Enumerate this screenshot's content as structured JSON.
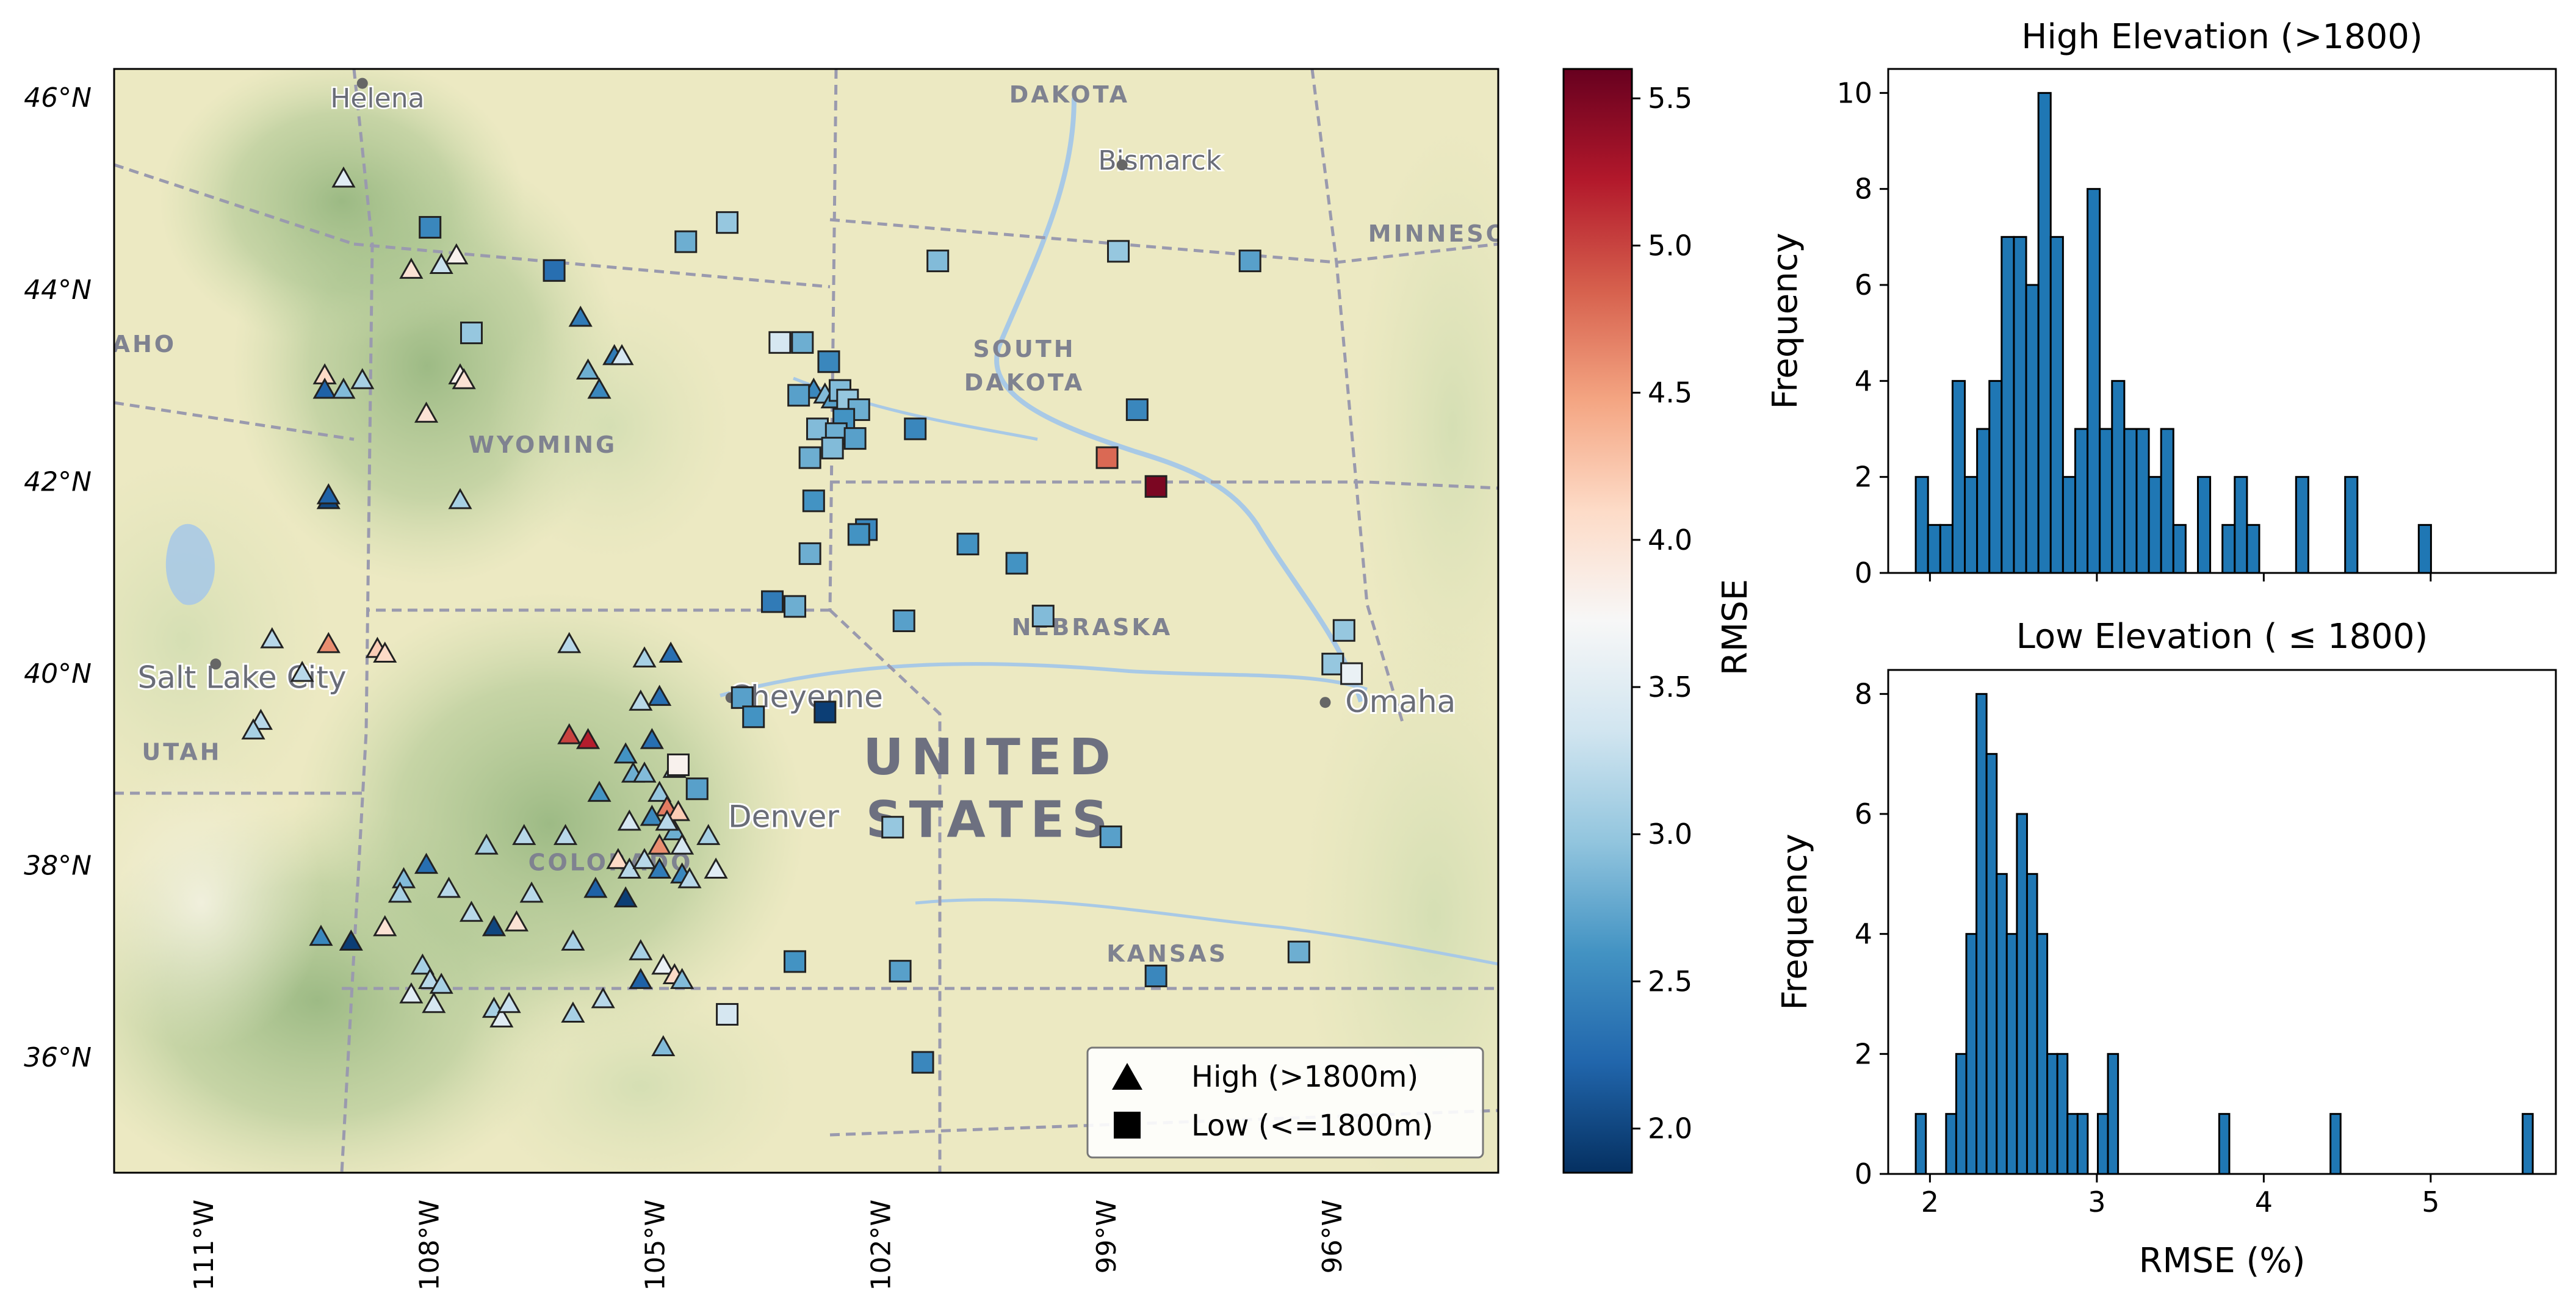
{
  "colors": {
    "bar_fill": "#1f77b4",
    "bar_edge": "#000000",
    "map_land": "#ece9c2",
    "map_green": "#bfd3a4",
    "map_dark_green": "#93b57e",
    "water": "#a8c9e6",
    "border": "#9a9aae"
  },
  "colormap": {
    "name": "RdBu_r",
    "stops": [
      "#053061",
      "#2166ac",
      "#4393c3",
      "#92c5de",
      "#d1e5f0",
      "#f7f7f7",
      "#fddbc7",
      "#f4a582",
      "#d6604d",
      "#b2182b",
      "#67001f"
    ]
  },
  "map": {
    "extent": {
      "lon": [
        -112.2,
        -93.8
      ],
      "lat": [
        34.8,
        46.3
      ]
    },
    "lat_ticks": [
      {
        "value": 46,
        "label": "46°N"
      },
      {
        "value": 44,
        "label": "44°N"
      },
      {
        "value": 42,
        "label": "42°N"
      },
      {
        "value": 40,
        "label": "40°N"
      },
      {
        "value": 38,
        "label": "38°N"
      },
      {
        "value": 36,
        "label": "36°N"
      }
    ],
    "lon_ticks": [
      {
        "value": -111,
        "label": "111°W"
      },
      {
        "value": -108,
        "label": "108°W"
      },
      {
        "value": -105,
        "label": "105°W"
      },
      {
        "value": -102,
        "label": "102°W"
      },
      {
        "value": -99,
        "label": "99°W"
      },
      {
        "value": -96,
        "label": "96°W"
      }
    ],
    "place_labels": [
      {
        "text": "DAKOTA",
        "lon": -99.5,
        "lat": 45.95,
        "kind": "state"
      },
      {
        "text": "Bismarck",
        "lon": -98.3,
        "lat": 45.25,
        "kind": "city"
      },
      {
        "text": "Helena",
        "lon": -108.7,
        "lat": 45.9,
        "kind": "city"
      },
      {
        "text": "MINNESO",
        "lon": -94.6,
        "lat": 44.5,
        "kind": "state"
      },
      {
        "text": "SOUTH",
        "lon": -100.1,
        "lat": 43.3,
        "kind": "state"
      },
      {
        "text": "DAKOTA",
        "lon": -100.1,
        "lat": 42.95,
        "kind": "state"
      },
      {
        "text": "AHO",
        "lon": -111.8,
        "lat": 43.35,
        "kind": "state"
      },
      {
        "text": "WYOMING",
        "lon": -106.5,
        "lat": 42.3,
        "kind": "state"
      },
      {
        "text": "Salt Lake City",
        "lon": -110.5,
        "lat": 39.85,
        "kind": "bigcity"
      },
      {
        "text": "UTAH",
        "lon": -111.3,
        "lat": 39.1,
        "kind": "state"
      },
      {
        "text": "Cheyenne",
        "lon": -103.0,
        "lat": 39.65,
        "kind": "bigcity"
      },
      {
        "text": "NEBRASKA",
        "lon": -99.2,
        "lat": 40.4,
        "kind": "state"
      },
      {
        "text": "Omaha",
        "lon": -95.1,
        "lat": 39.6,
        "kind": "bigcity"
      },
      {
        "text": "UNITED",
        "lon": -100.55,
        "lat": 38.95,
        "kind": "country"
      },
      {
        "text": "STATES",
        "lon": -100.55,
        "lat": 38.3,
        "kind": "country"
      },
      {
        "text": "Denver",
        "lon": -103.3,
        "lat": 38.4,
        "kind": "bigcity"
      },
      {
        "text": "COLORADO",
        "lon": -105.6,
        "lat": 37.95,
        "kind": "state"
      },
      {
        "text": "KANSAS",
        "lon": -98.2,
        "lat": 37.0,
        "kind": "state"
      }
    ],
    "legend": [
      {
        "marker": "triangle",
        "label": "High (>1800m)"
      },
      {
        "marker": "square",
        "label": "Low (<=1800m)"
      }
    ]
  },
  "colorbar": {
    "label": "RMSE",
    "range": [
      1.85,
      5.6
    ],
    "ticks": [
      {
        "value": 2.0,
        "label": "2.0"
      },
      {
        "value": 2.5,
        "label": "2.5"
      },
      {
        "value": 3.0,
        "label": "3.0"
      },
      {
        "value": 3.5,
        "label": "3.5"
      },
      {
        "value": 4.0,
        "label": "4.0"
      },
      {
        "value": 4.5,
        "label": "4.5"
      },
      {
        "value": 5.0,
        "label": "5.0"
      },
      {
        "value": 5.5,
        "label": "5.5"
      }
    ]
  },
  "chart_data": [
    {
      "type": "scatter",
      "title": "",
      "xlabel": "",
      "ylabel": "",
      "series": [
        {
          "name": "High (>1800m)",
          "marker": "triangle",
          "points": [
            [
              -109.15,
              45.15,
              3.5
            ],
            [
              -107.65,
              44.35,
              3.8
            ],
            [
              -107.85,
              44.25,
              3.3
            ],
            [
              -108.25,
              44.2,
              4.0
            ],
            [
              -106.0,
              43.7,
              2.4
            ],
            [
              -105.55,
              43.3,
              2.4
            ],
            [
              -105.45,
              43.3,
              3.4
            ],
            [
              -105.9,
              43.15,
              2.8
            ],
            [
              -105.75,
              42.95,
              2.5
            ],
            [
              -109.4,
              43.1,
              4.1
            ],
            [
              -109.4,
              42.95,
              2.2
            ],
            [
              -109.15,
              42.95,
              2.9
            ],
            [
              -108.9,
              43.05,
              3.1
            ],
            [
              -107.6,
              43.1,
              3.8
            ],
            [
              -107.55,
              43.05,
              4.0
            ],
            [
              -108.05,
              42.7,
              4.0
            ],
            [
              -109.35,
              41.8,
              2.0
            ],
            [
              -109.35,
              41.85,
              2.2
            ],
            [
              -107.6,
              41.8,
              3.1
            ],
            [
              -110.1,
              40.35,
              3.2
            ],
            [
              -109.35,
              40.3,
              4.6
            ],
            [
              -108.7,
              40.25,
              4.2
            ],
            [
              -108.6,
              40.2,
              4.1
            ],
            [
              -109.7,
              40.0,
              3.2
            ],
            [
              -110.25,
              39.5,
              3.2
            ],
            [
              -110.35,
              39.4,
              3.1
            ],
            [
              -106.15,
              40.3,
              3.2
            ],
            [
              -105.15,
              40.15,
              3.1
            ],
            [
              -104.8,
              40.2,
              2.3
            ],
            [
              -104.95,
              39.75,
              2.3
            ],
            [
              -105.2,
              39.7,
              3.2
            ],
            [
              -105.05,
              39.3,
              2.3
            ],
            [
              -106.15,
              39.35,
              5.0
            ],
            [
              -105.9,
              39.3,
              5.2
            ],
            [
              -105.4,
              39.15,
              2.6
            ],
            [
              -105.3,
              38.95,
              2.8
            ],
            [
              -105.15,
              38.95,
              2.9
            ],
            [
              -104.75,
              39.0,
              3.1
            ],
            [
              -105.75,
              38.75,
              2.6
            ],
            [
              -104.95,
              38.75,
              3.0
            ],
            [
              -104.85,
              38.6,
              4.7
            ],
            [
              -104.7,
              38.55,
              4.2
            ],
            [
              -104.75,
              38.35,
              2.8
            ],
            [
              -104.95,
              38.2,
              4.6
            ],
            [
              -104.65,
              38.2,
              3.4
            ],
            [
              -105.35,
              38.45,
              3.4
            ],
            [
              -105.05,
              38.5,
              2.5
            ],
            [
              -104.85,
              38.45,
              3.2
            ],
            [
              -104.3,
              38.3,
              3.1
            ],
            [
              -106.2,
              38.3,
              3.2
            ],
            [
              -105.5,
              38.05,
              4.1
            ],
            [
              -105.35,
              37.95,
              3.2
            ],
            [
              -105.15,
              38.05,
              3.2
            ],
            [
              -104.95,
              37.95,
              2.4
            ],
            [
              -104.65,
              37.9,
              2.5
            ],
            [
              -104.55,
              37.85,
              3.2
            ],
            [
              -104.2,
              37.95,
              3.5
            ],
            [
              -106.75,
              38.3,
              3.2
            ],
            [
              -107.25,
              38.2,
              3.1
            ],
            [
              -108.05,
              38.0,
              2.3
            ],
            [
              -108.35,
              37.85,
              2.9
            ],
            [
              -108.4,
              37.7,
              3.1
            ],
            [
              -107.75,
              37.75,
              3.2
            ],
            [
              -106.65,
              37.7,
              3.2
            ],
            [
              -105.8,
              37.75,
              2.2
            ],
            [
              -105.4,
              37.65,
              1.95
            ],
            [
              -107.45,
              37.5,
              3.2
            ],
            [
              -107.15,
              37.35,
              2.0
            ],
            [
              -106.85,
              37.4,
              4.0
            ],
            [
              -106.1,
              37.2,
              3.1
            ],
            [
              -105.2,
              37.1,
              3.1
            ],
            [
              -108.6,
              37.35,
              4.0
            ],
            [
              -109.05,
              37.2,
              1.95
            ],
            [
              -109.45,
              37.25,
              2.5
            ],
            [
              -108.1,
              36.95,
              3.1
            ],
            [
              -108.0,
              36.8,
              3.2
            ],
            [
              -108.25,
              36.65,
              3.5
            ],
            [
              -107.95,
              36.55,
              3.4
            ],
            [
              -107.85,
              36.75,
              3.1
            ],
            [
              -107.15,
              36.5,
              3.1
            ],
            [
              -107.05,
              36.4,
              3.5
            ],
            [
              -106.95,
              36.55,
              3.3
            ],
            [
              -106.1,
              36.45,
              3.1
            ],
            [
              -105.7,
              36.6,
              3.2
            ],
            [
              -104.9,
              36.95,
              3.6
            ],
            [
              -104.75,
              36.85,
              4.1
            ],
            [
              -104.65,
              36.8,
              2.9
            ],
            [
              -105.2,
              36.8,
              2.2
            ],
            [
              -104.9,
              36.1,
              2.9
            ],
            [
              -102.9,
              42.95,
              2.5
            ],
            [
              -102.75,
              42.9,
              2.9
            ],
            [
              -102.65,
              42.85,
              2.7
            ]
          ]
        },
        {
          "name": "Low (<=1800m)",
          "marker": "square",
          "points": [
            [
              -108.0,
              44.65,
              2.5
            ],
            [
              -107.45,
              43.55,
              3.0
            ],
            [
              -106.35,
              44.2,
              2.3
            ],
            [
              -104.05,
              44.7,
              3.0
            ],
            [
              -104.6,
              44.5,
              2.8
            ],
            [
              -101.25,
              44.3,
              2.9
            ],
            [
              -98.85,
              44.4,
              3.0
            ],
            [
              -97.1,
              44.3,
              2.7
            ],
            [
              -103.35,
              43.45,
              3.4
            ],
            [
              -103.05,
              43.45,
              2.8
            ],
            [
              -102.7,
              43.25,
              2.5
            ],
            [
              -103.1,
              42.9,
              2.7
            ],
            [
              -102.55,
              42.95,
              2.9
            ],
            [
              -102.45,
              42.85,
              3.0
            ],
            [
              -102.3,
              42.75,
              2.8
            ],
            [
              -102.5,
              42.65,
              2.6
            ],
            [
              -102.85,
              42.55,
              2.9
            ],
            [
              -102.6,
              42.5,
              2.8
            ],
            [
              -102.35,
              42.45,
              2.7
            ],
            [
              -102.65,
              42.35,
              2.9
            ],
            [
              -102.95,
              42.25,
              2.8
            ],
            [
              -101.55,
              42.55,
              2.5
            ],
            [
              -98.6,
              42.75,
              2.5
            ],
            [
              -99.0,
              42.25,
              4.8
            ],
            [
              -98.35,
              41.95,
              5.5
            ],
            [
              -102.9,
              41.8,
              2.6
            ],
            [
              -102.2,
              41.5,
              2.5
            ],
            [
              -102.3,
              41.45,
              2.6
            ],
            [
              -102.95,
              41.25,
              2.8
            ],
            [
              -100.85,
              41.35,
              2.6
            ],
            [
              -100.2,
              41.15,
              2.6
            ],
            [
              -103.45,
              40.75,
              2.4
            ],
            [
              -103.15,
              40.7,
              2.8
            ],
            [
              -101.7,
              40.55,
              2.7
            ],
            [
              -99.85,
              40.6,
              2.9
            ],
            [
              -95.85,
              40.45,
              3.0
            ],
            [
              -96.0,
              40.1,
              3.0
            ],
            [
              -95.75,
              40.0,
              3.6
            ],
            [
              -103.85,
              39.75,
              2.7
            ],
            [
              -103.7,
              39.55,
              2.6
            ],
            [
              -102.75,
              39.6,
              1.95
            ],
            [
              -104.7,
              39.05,
              3.8
            ],
            [
              -104.45,
              38.8,
              2.7
            ],
            [
              -101.85,
              38.4,
              3.0
            ],
            [
              -98.95,
              38.3,
              2.7
            ],
            [
              -103.15,
              37.0,
              2.6
            ],
            [
              -101.75,
              36.9,
              2.7
            ],
            [
              -104.05,
              36.45,
              3.4
            ],
            [
              -101.45,
              35.95,
              2.5
            ],
            [
              -98.35,
              36.85,
              2.5
            ],
            [
              -96.45,
              37.1,
              2.8
            ]
          ]
        }
      ]
    },
    {
      "type": "bar",
      "title": "High Elevation (>1800)",
      "xlabel": "",
      "ylabel": "Frequency",
      "xlim": [
        1.75,
        5.75
      ],
      "ylim": [
        0,
        10.5
      ],
      "xticks": [
        2,
        3,
        4,
        5
      ],
      "yticks": [
        0,
        2,
        4,
        6,
        8,
        10
      ],
      "bin_width": 0.0735,
      "bin_start": 1.915,
      "counts": [
        2,
        1,
        1,
        4,
        2,
        3,
        4,
        7,
        7,
        6,
        10,
        7,
        2,
        3,
        8,
        3,
        4,
        3,
        3,
        2,
        3,
        1,
        0,
        2,
        0,
        1,
        2,
        1,
        0,
        0,
        0,
        2,
        0,
        0,
        0,
        2,
        0,
        0,
        0,
        0,
        0,
        1
      ]
    },
    {
      "type": "bar",
      "title": "Low Elevation ( ≤ 1800)",
      "xlabel": "RMSE (%)",
      "ylabel": "Frequency",
      "xlim": [
        1.75,
        5.75
      ],
      "ylim": [
        0,
        8.4
      ],
      "xticks": [
        2,
        3,
        4,
        5
      ],
      "xtick_labels": [
        "2",
        "3",
        "4",
        "5"
      ],
      "yticks": [
        0,
        2,
        4,
        6,
        8
      ],
      "bin_width": 0.0606,
      "bin_start": 1.915,
      "counts": [
        1,
        0,
        0,
        1,
        2,
        4,
        8,
        7,
        5,
        4,
        6,
        5,
        4,
        2,
        2,
        1,
        1,
        0,
        1,
        2,
        0,
        0,
        0,
        0,
        0,
        0,
        0,
        0,
        0,
        0,
        1,
        0,
        0,
        0,
        0,
        0,
        0,
        0,
        0,
        0,
        0,
        1,
        0,
        0,
        0,
        0,
        0,
        0,
        0,
        0,
        0,
        0,
        0,
        0,
        0,
        0,
        0,
        0,
        0,
        0,
        1
      ]
    }
  ]
}
